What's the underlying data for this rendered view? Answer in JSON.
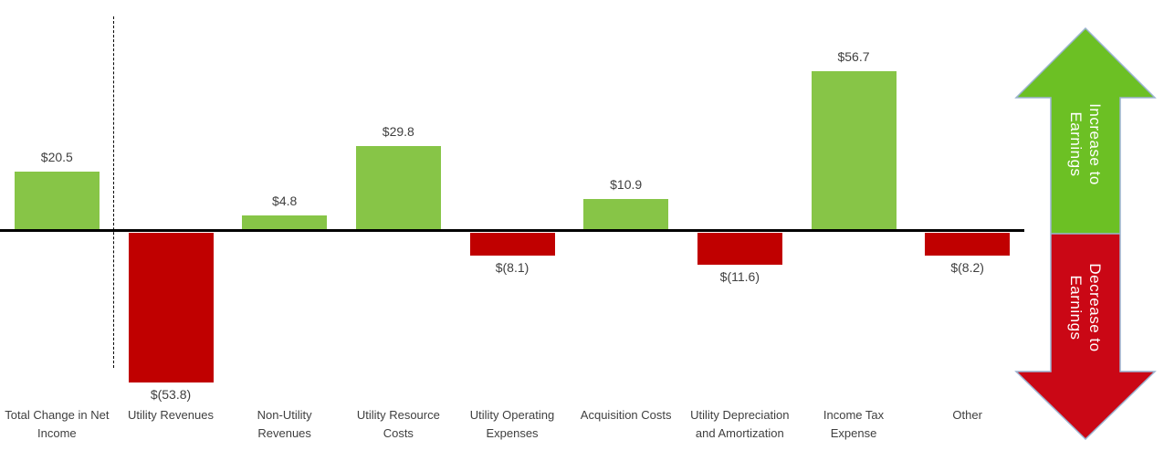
{
  "chart_data": {
    "type": "bar",
    "title": "",
    "xlabel": "",
    "ylabel": "",
    "ylim": [
      -60,
      60
    ],
    "baseline": 0,
    "grid": false,
    "legend": false,
    "separator_after_first_category": true,
    "categories": [
      "Total Change in Net Income",
      "Utility Revenues",
      "Non-Utility Revenues",
      "Utility Resource Costs",
      "Utility Operating Expenses",
      "Acquisition Costs",
      "Utility Depreciation and Amortization",
      "Income Tax Expense",
      "Other"
    ],
    "category_lines": [
      [
        "Total Change in Net",
        "Income"
      ],
      [
        "Utility Revenues"
      ],
      [
        "Non-Utility",
        "Revenues"
      ],
      [
        "Utility Resource",
        "Costs"
      ],
      [
        "Utility Operating",
        "Expenses"
      ],
      [
        "Acquisition Costs"
      ],
      [
        "Utility Depreciation",
        "and Amortization"
      ],
      [
        "Income Tax",
        "Expense"
      ],
      [
        "Other"
      ]
    ],
    "values": [
      20.5,
      -53.8,
      4.8,
      29.8,
      -8.1,
      10.9,
      -11.6,
      56.7,
      -8.2
    ],
    "value_labels": [
      "$20.5",
      "$(53.8)",
      "$4.8",
      "$29.8",
      "$(8.1)",
      "$10.9",
      "$(11.6)",
      "$56.7",
      "$(8.2)"
    ],
    "positive_color": "#87C547",
    "negative_color": "#C00000",
    "axis_color": "#000000"
  },
  "annotations": {
    "increase_arrow": {
      "lines": [
        "Increase to",
        "Earnings"
      ],
      "fill": "#6CC024"
    },
    "decrease_arrow": {
      "lines": [
        "Decrease to",
        "Earnings"
      ],
      "fill": "#CA0715"
    }
  }
}
